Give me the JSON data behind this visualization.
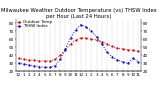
{
  "title": "Milwaukee Weather Outdoor Temperature (vs) THSW Index per Hour (Last 24 Hours)",
  "hours": [
    0,
    1,
    2,
    3,
    4,
    5,
    6,
    7,
    8,
    9,
    10,
    11,
    12,
    13,
    14,
    15,
    16,
    17,
    18,
    19,
    20,
    21,
    22,
    23
  ],
  "outdoor_temp": [
    36,
    35,
    34,
    34,
    33,
    33,
    33,
    35,
    40,
    47,
    54,
    59,
    62,
    61,
    60,
    59,
    57,
    54,
    51,
    49,
    48,
    47,
    46,
    45
  ],
  "thsw_index": [
    30,
    29,
    28,
    27,
    26,
    25,
    25,
    27,
    35,
    48,
    62,
    72,
    78,
    75,
    70,
    63,
    54,
    44,
    38,
    34,
    32,
    30,
    36,
    32
  ],
  "temp_color": "#cc0000",
  "thsw_color": "#0000cc",
  "bg_color": "#ffffff",
  "grid_color": "#999999",
  "ylim": [
    20,
    85
  ],
  "yticks": [
    20,
    30,
    40,
    50,
    60,
    70,
    80
  ],
  "title_fontsize": 3.8,
  "tick_fontsize": 3.0,
  "legend_fontsize": 3.0,
  "legend_labels": [
    "Outdoor Temp",
    "THSW Index"
  ]
}
